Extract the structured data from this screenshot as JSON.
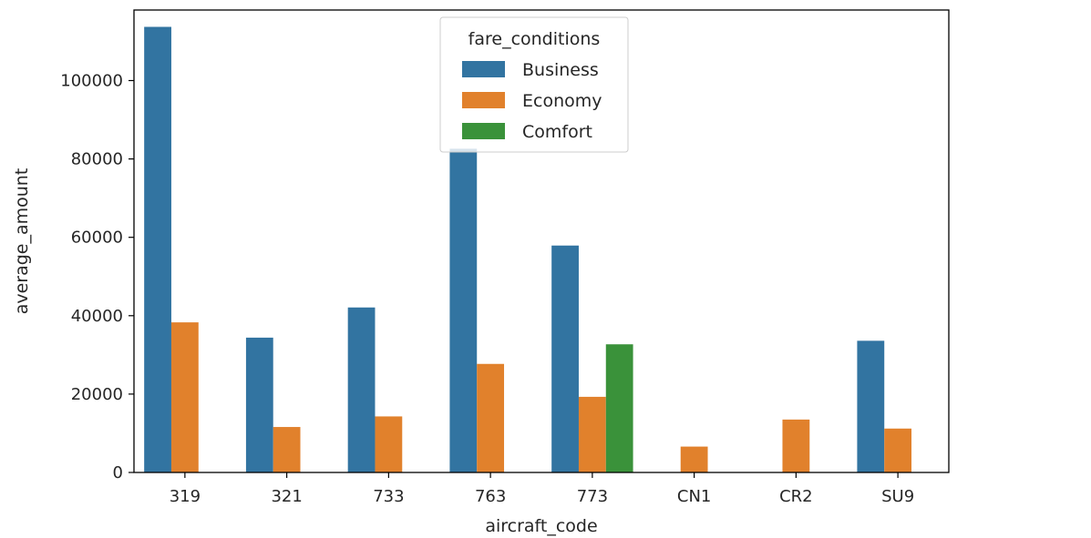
{
  "chart_data": {
    "type": "bar",
    "title": "",
    "xlabel": "aircraft_code",
    "ylabel": "average_amount",
    "categories": [
      "319",
      "321",
      "733",
      "763",
      "773",
      "CN1",
      "CR2",
      "SU9"
    ],
    "series": [
      {
        "name": "Business",
        "color": "#3274a1",
        "values": [
          113700,
          34400,
          42100,
          82600,
          57900,
          null,
          null,
          33600
        ]
      },
      {
        "name": "Economy",
        "color": "#e1812c",
        "values": [
          38300,
          11600,
          14300,
          27700,
          19300,
          6600,
          13500,
          11200
        ]
      },
      {
        "name": "Comfort",
        "color": "#3a923a",
        "values": [
          null,
          null,
          null,
          null,
          32700,
          null,
          null,
          null
        ]
      }
    ],
    "ylim": [
      0,
      118000
    ],
    "yticks": [
      0,
      20000,
      40000,
      60000,
      80000,
      100000
    ],
    "legend": {
      "title": "fare_conditions",
      "placement": "upper-center"
    },
    "grid": false
  }
}
